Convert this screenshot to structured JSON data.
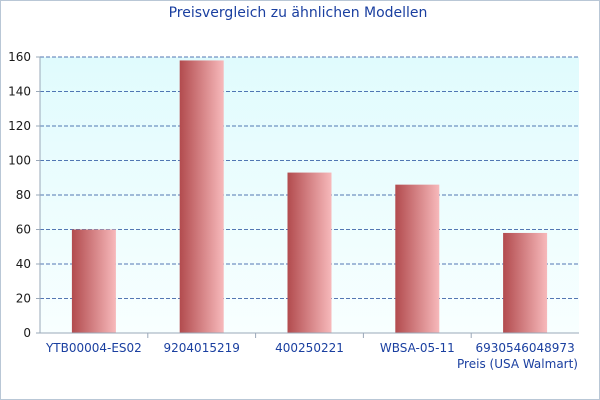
{
  "chart_data": {
    "type": "bar",
    "title": "Preisvergleich zu ähnlichen Modellen",
    "xlabel": "Preis (USA Walmart)",
    "ylabel": "",
    "categories": [
      "YTB00004-ES02",
      "9204015219",
      "400250221",
      "WBSA-05-11",
      "6930546048973"
    ],
    "values": [
      60,
      158,
      93,
      86,
      58
    ],
    "ylim": [
      0,
      160
    ],
    "yticks": [
      0,
      20,
      40,
      60,
      80,
      100,
      120,
      140,
      160
    ],
    "grid": true,
    "colors": {
      "bar_dark": "#b24b4e",
      "bar_light": "#f7b9bb",
      "plot_bg_top": "#e0fbfd",
      "plot_bg_bottom": "#f8ffff",
      "grid": "#1f4b9a",
      "text_blue": "#1a3fa0"
    }
  }
}
